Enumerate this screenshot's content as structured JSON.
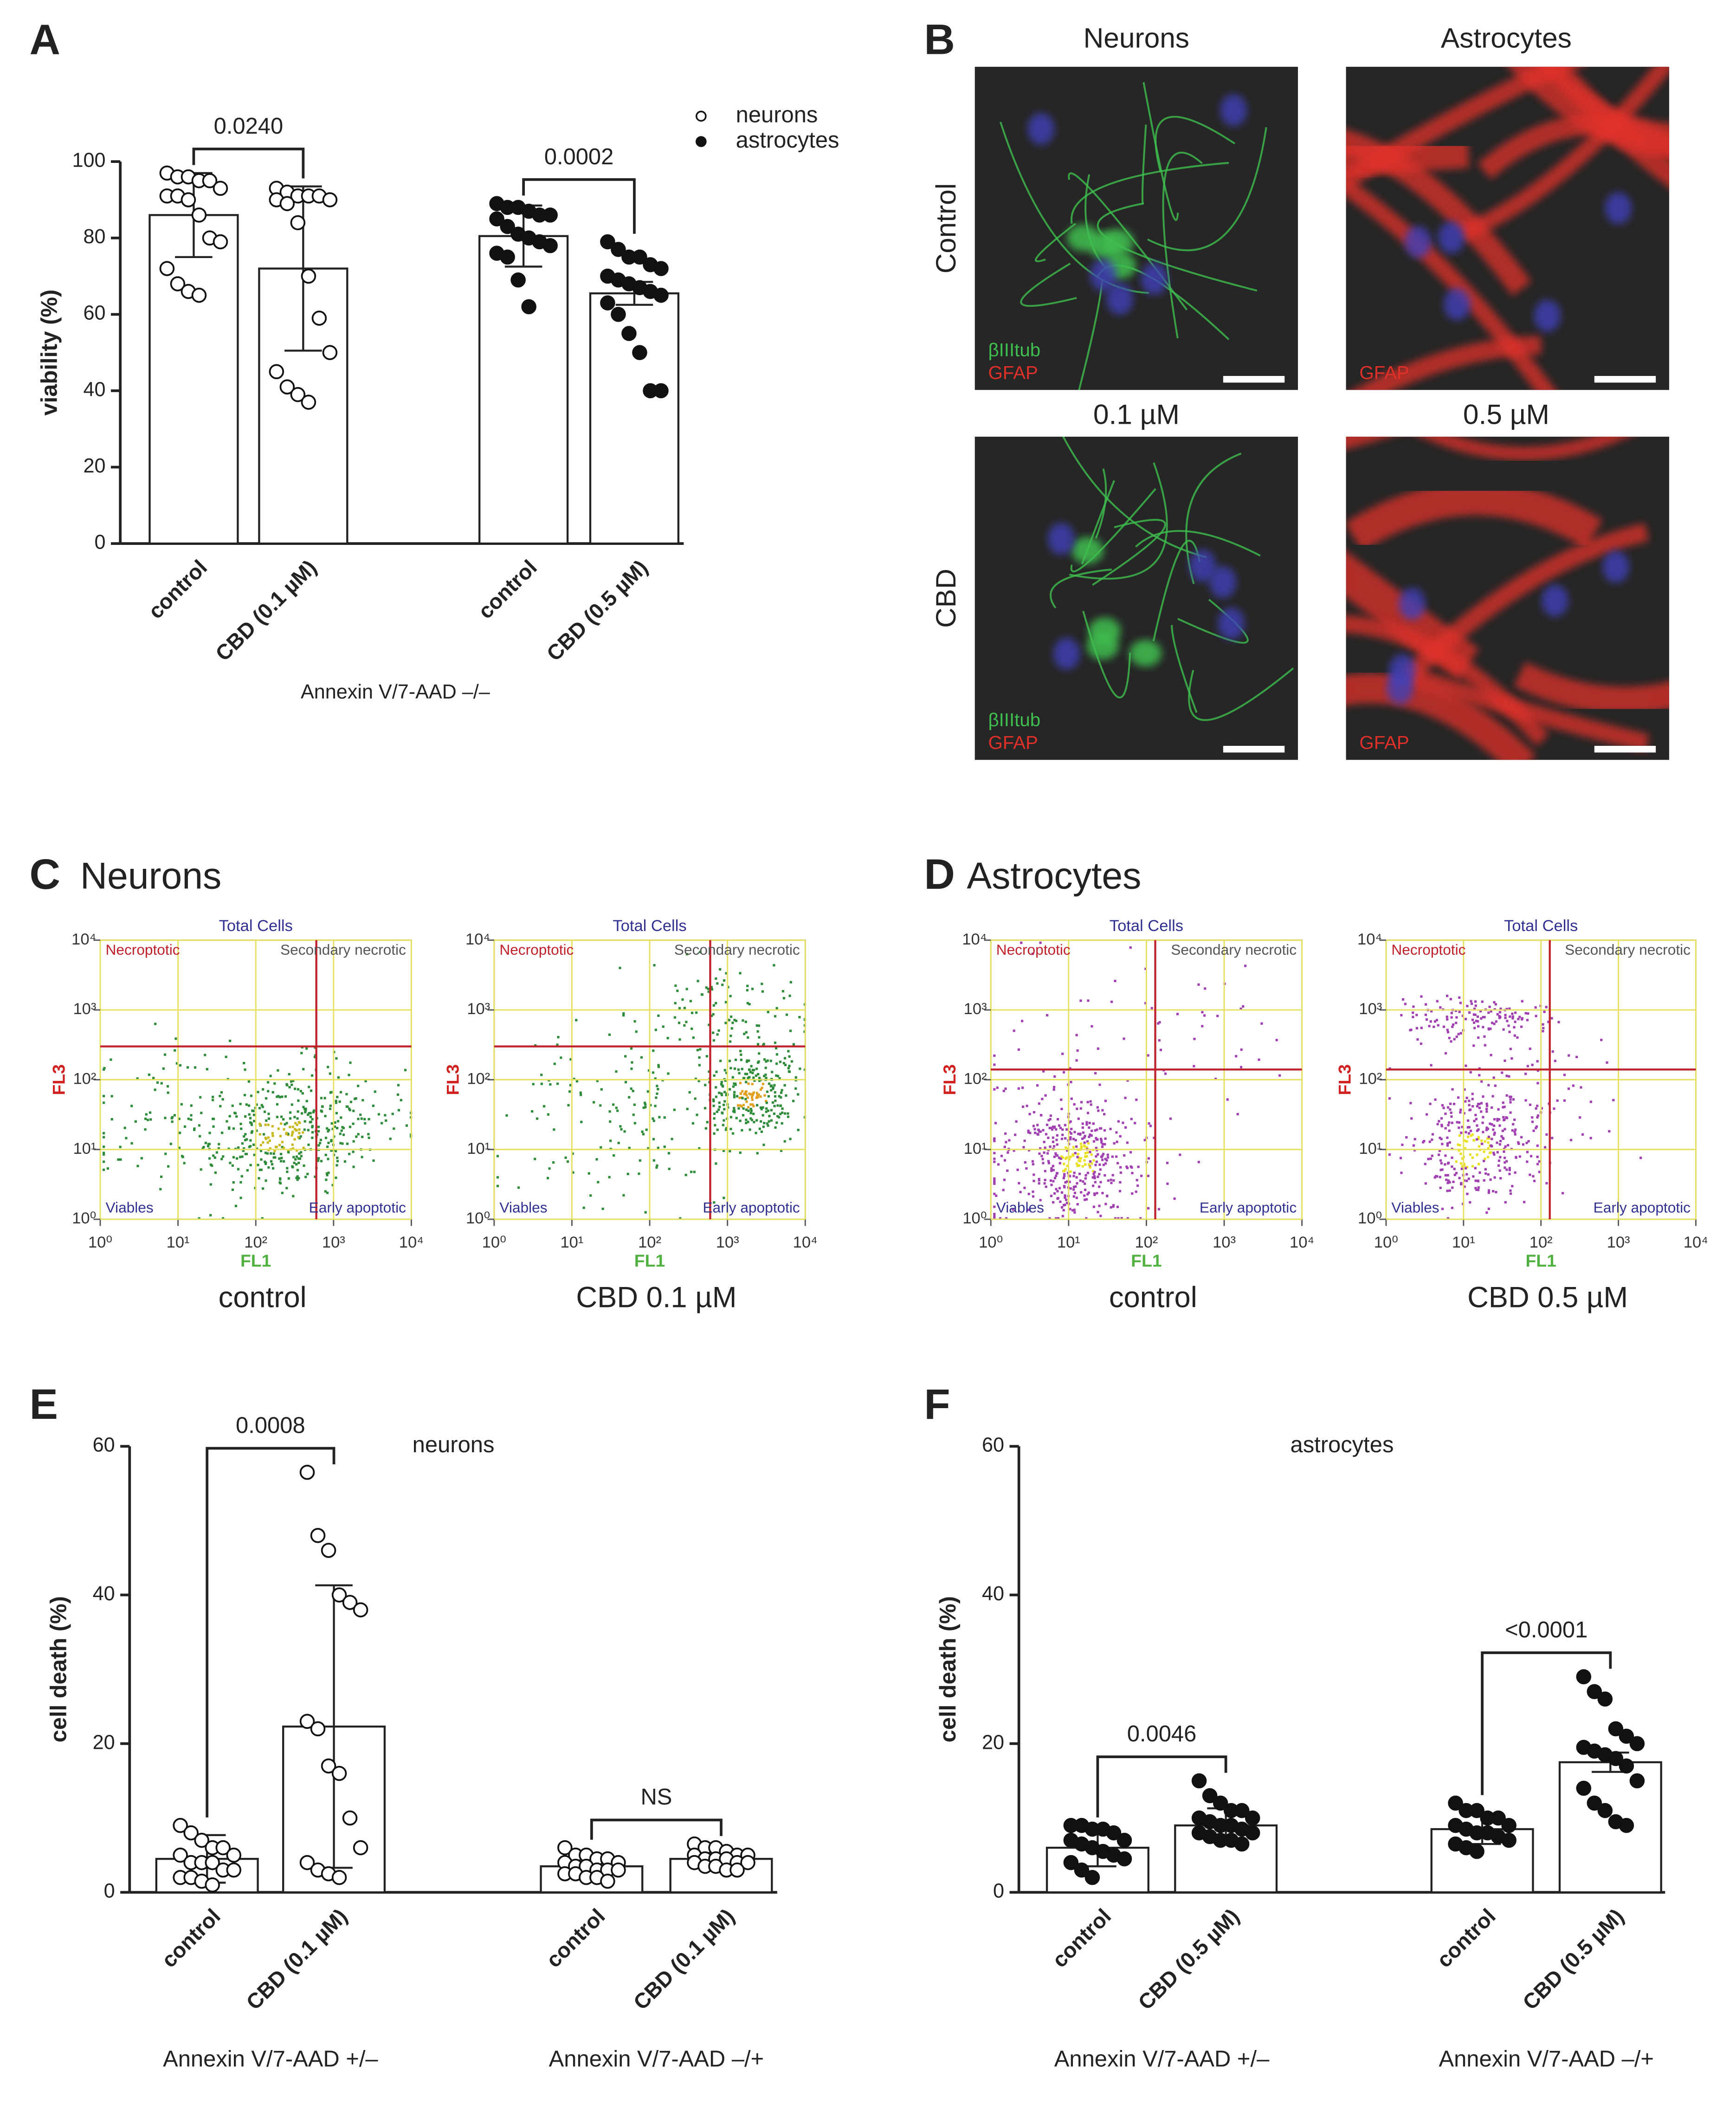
{
  "panel_letters": [
    "A",
    "B",
    "C",
    "D",
    "E",
    "F"
  ],
  "panel_titles": {
    "C": "Neurons",
    "D": "Astrocytes"
  },
  "micrographs": {
    "columns": [
      "Neurons",
      "Astrocytes"
    ],
    "rows": [
      "Control",
      "CBD"
    ],
    "concentrations": [
      "0.1 µM",
      "0.5 µM"
    ],
    "images": [
      {
        "stains": [
          {
            "name": "βIIItub",
            "color": "#3fbf4f"
          },
          {
            "name": "GFAP",
            "color": "#e0302a"
          }
        ]
      },
      {
        "stains": [
          {
            "name": "GFAP",
            "color": "#e0302a"
          }
        ]
      },
      {
        "stains": [
          {
            "name": "βIIItub",
            "color": "#3fbf4f"
          },
          {
            "name": "GFAP",
            "color": "#e0302a"
          }
        ]
      },
      {
        "stains": [
          {
            "name": "GFAP",
            "color": "#e0302a"
          }
        ]
      }
    ]
  },
  "chart_data": [
    {
      "type": "bar",
      "ylabel": "viability (%)",
      "xlabel": "Annexin V/7-AAD –/–",
      "ylim": [
        0,
        100
      ],
      "yticks": [
        0,
        20,
        40,
        60,
        80,
        100
      ],
      "groups": [
        {
          "name": "neurons",
          "filled": false,
          "p_label": "0.0240",
          "categories": [
            "control",
            "CBD (0.1 µM)"
          ],
          "values": [
            86,
            72
          ],
          "errors": [
            11,
            21.5
          ],
          "points": [
            [
              97,
              96,
              96,
              95,
              95,
              93,
              91,
              91,
              90,
              86,
              80,
              79,
              72,
              68,
              66,
              65
            ],
            [
              93,
              92,
              91,
              91,
              91,
              90,
              90,
              89,
              84,
              70,
              59,
              50,
              45,
              41,
              39,
              37
            ]
          ]
        },
        {
          "name": "astrocytes",
          "filled": true,
          "p_label": "0.0002",
          "categories": [
            "control",
            "CBD (0.5 µM)"
          ],
          "values": [
            80.5,
            65.5
          ],
          "errors": [
            8,
            3
          ],
          "points": [
            [
              89,
              88,
              88,
              87,
              86,
              86,
              85,
              83,
              81,
              80,
              79,
              78,
              76,
              75,
              69,
              62
            ],
            [
              79,
              77,
              75,
              75,
              73,
              72,
              70,
              69,
              68,
              67,
              66,
              65,
              63,
              60,
              55,
              50,
              40,
              40
            ]
          ]
        }
      ]
    },
    {
      "type": "bar",
      "title": "neurons",
      "ylabel": "cell death (%)",
      "ylim": [
        0,
        60
      ],
      "yticks": [
        0,
        20,
        40,
        60
      ],
      "groups": [
        {
          "xlabel": "Annexin V/7-AAD +/–",
          "filled": false,
          "p_label": "0.0008",
          "categories": [
            "control",
            "CBD (0.1 µM)"
          ],
          "values": [
            4.5,
            22.3
          ],
          "errors": [
            3.2,
            19
          ],
          "points": [
            [
              9,
              8,
              7,
              6,
              6,
              5,
              5,
              4,
              4,
              4,
              3,
              3,
              2,
              2,
              1.5,
              1
            ],
            [
              56.5,
              48,
              46,
              40,
              39,
              38,
              23,
              22,
              17,
              16,
              10,
              6,
              4,
              3,
              2.5,
              2
            ]
          ]
        },
        {
          "xlabel": "Annexin V/7-AAD –/+",
          "filled": false,
          "p_label": "NS",
          "categories": [
            "control",
            "CBD (0.1 µM)"
          ],
          "values": [
            3.5,
            4.5
          ],
          "errors": [
            1.2,
            1.3
          ],
          "points": [
            [
              6,
              5,
              5,
              4.5,
              4.5,
              4,
              4,
              3.5,
              3.5,
              3,
              3,
              3,
              2.5,
              2.5,
              2,
              2,
              1.5
            ],
            [
              6.5,
              6,
              6,
              5.5,
              5,
              5,
              5,
              4.5,
              4.5,
              4.5,
              4,
              4,
              4,
              3.5,
              3.5,
              3,
              3
            ]
          ]
        }
      ]
    },
    {
      "type": "bar",
      "title": "astrocytes",
      "ylabel": "cell death (%)",
      "ylim": [
        0,
        60
      ],
      "yticks": [
        0,
        20,
        40,
        60
      ],
      "groups": [
        {
          "xlabel": "Annexin V/7-AAD +/–",
          "filled": true,
          "p_label": "0.0046",
          "categories": [
            "control",
            "CBD (0.5 µM)"
          ],
          "values": [
            6,
            9
          ],
          "errors": [
            2.5,
            2.3
          ],
          "points": [
            [
              9,
              9,
              8.5,
              8.5,
              8,
              7,
              7,
              6.5,
              6,
              5.5,
              5,
              4.5,
              4,
              3,
              2
            ],
            [
              15,
              13,
              12,
              11,
              11,
              10,
              10,
              9.5,
              9,
              9,
              8.5,
              8,
              8,
              7.5,
              7,
              7,
              6.5
            ]
          ]
        },
        {
          "xlabel": "Annexin V/7-AAD –/+",
          "filled": true,
          "p_label": "<0.0001",
          "categories": [
            "control",
            "CBD (0.5 µM)"
          ],
          "values": [
            8.5,
            17.5
          ],
          "errors": [
            2,
            1.3
          ],
          "points": [
            [
              12,
              11,
              11,
              10,
              10,
              9,
              9,
              8.5,
              8,
              8,
              7.5,
              7,
              6.5,
              6,
              5.5
            ],
            [
              29,
              27,
              26,
              22,
              21,
              20,
              19.5,
              19,
              18.5,
              18,
              17,
              15,
              14,
              12,
              11,
              9.5,
              9
            ]
          ]
        }
      ]
    },
    {
      "type": "flow",
      "title": "Total Cells",
      "caption": "control",
      "xlabel": "FL1",
      "ylabel": "FL3",
      "log_scale": true,
      "grid": true,
      "xlim": [
        1,
        10000
      ],
      "ylim": [
        1,
        10000
      ],
      "xticks": [
        {
          "value": 1,
          "label": "10⁰"
        },
        {
          "value": 10,
          "label": "10¹"
        },
        {
          "value": 100,
          "label": "10²"
        },
        {
          "value": 1000,
          "label": "10³"
        },
        {
          "value": 10000,
          "label": "10⁴"
        }
      ],
      "yticks": [
        {
          "value": 1,
          "label": "10⁰"
        },
        {
          "value": 10,
          "label": "10¹"
        },
        {
          "value": 100,
          "label": "10²"
        },
        {
          "value": 1000,
          "label": "10³"
        },
        {
          "value": 10000,
          "label": "10⁴"
        }
      ],
      "gates": {
        "x": 600,
        "y": 300
      },
      "quadrants": [
        "Necroptotic",
        "Secondary necrotic",
        "Viables",
        "Early apoptotic"
      ],
      "dot_colors": [
        "#2e8b3a",
        "#c8b820"
      ]
    },
    {
      "type": "flow",
      "title": "Total Cells",
      "caption": "CBD 0.1 µM",
      "xlabel": "FL1",
      "ylabel": "FL3",
      "log_scale": true,
      "grid": true,
      "xlim": [
        1,
        10000
      ],
      "ylim": [
        1,
        10000
      ],
      "xticks": [
        {
          "value": 1,
          "label": "10⁰"
        },
        {
          "value": 10,
          "label": "10¹"
        },
        {
          "value": 100,
          "label": "10²"
        },
        {
          "value": 1000,
          "label": "10³"
        },
        {
          "value": 10000,
          "label": "10⁴"
        }
      ],
      "yticks": [
        {
          "value": 1,
          "label": "10⁰"
        },
        {
          "value": 10,
          "label": "10¹"
        },
        {
          "value": 100,
          "label": "10²"
        },
        {
          "value": 1000,
          "label": "10³"
        },
        {
          "value": 10000,
          "label": "10⁴"
        }
      ],
      "gates": {
        "x": 600,
        "y": 300
      },
      "quadrants": [
        "Necroptotic",
        "Secondary necrotic",
        "Viables",
        "Early apoptotic"
      ],
      "dot_colors": [
        "#2e8b3a",
        "#e0a020"
      ]
    },
    {
      "type": "flow",
      "title": "Total Cells",
      "caption": "control",
      "xlabel": "FL1",
      "ylabel": "FL3",
      "log_scale": true,
      "grid": true,
      "xlim": [
        1,
        10000
      ],
      "ylim": [
        1,
        10000
      ],
      "xticks": [
        {
          "value": 1,
          "label": "10⁰"
        },
        {
          "value": 10,
          "label": "10¹"
        },
        {
          "value": 100,
          "label": "10²"
        },
        {
          "value": 1000,
          "label": "10³"
        },
        {
          "value": 10000,
          "label": "10⁴"
        }
      ],
      "yticks": [
        {
          "value": 1,
          "label": "10⁰"
        },
        {
          "value": 10,
          "label": "10¹"
        },
        {
          "value": 100,
          "label": "10²"
        },
        {
          "value": 1000,
          "label": "10³"
        },
        {
          "value": 10000,
          "label": "10⁴"
        }
      ],
      "gates": {
        "x": 130,
        "y": 140
      },
      "quadrants": [
        "Necroptotic",
        "Secondary necrotic",
        "Viables",
        "Early apoptotic"
      ],
      "dot_colors": [
        "#a040b0",
        "#e8e020"
      ]
    },
    {
      "type": "flow",
      "title": "Total Cells",
      "caption": "CBD 0.5 µM",
      "xlabel": "FL1",
      "ylabel": "FL3",
      "log_scale": true,
      "grid": true,
      "xlim": [
        1,
        10000
      ],
      "ylim": [
        1,
        10000
      ],
      "xticks": [
        {
          "value": 1,
          "label": "10⁰"
        },
        {
          "value": 10,
          "label": "10¹"
        },
        {
          "value": 100,
          "label": "10²"
        },
        {
          "value": 1000,
          "label": "10³"
        },
        {
          "value": 10000,
          "label": "10⁴"
        }
      ],
      "yticks": [
        {
          "value": 1,
          "label": "10⁰"
        },
        {
          "value": 10,
          "label": "10¹"
        },
        {
          "value": 100,
          "label": "10²"
        },
        {
          "value": 1000,
          "label": "10³"
        },
        {
          "value": 10000,
          "label": "10⁴"
        }
      ],
      "gates": {
        "x": 130,
        "y": 140
      },
      "quadrants": [
        "Necroptotic",
        "Secondary necrotic",
        "Viables",
        "Early apoptotic"
      ],
      "dot_colors": [
        "#a040b0",
        "#e8e020"
      ]
    }
  ]
}
